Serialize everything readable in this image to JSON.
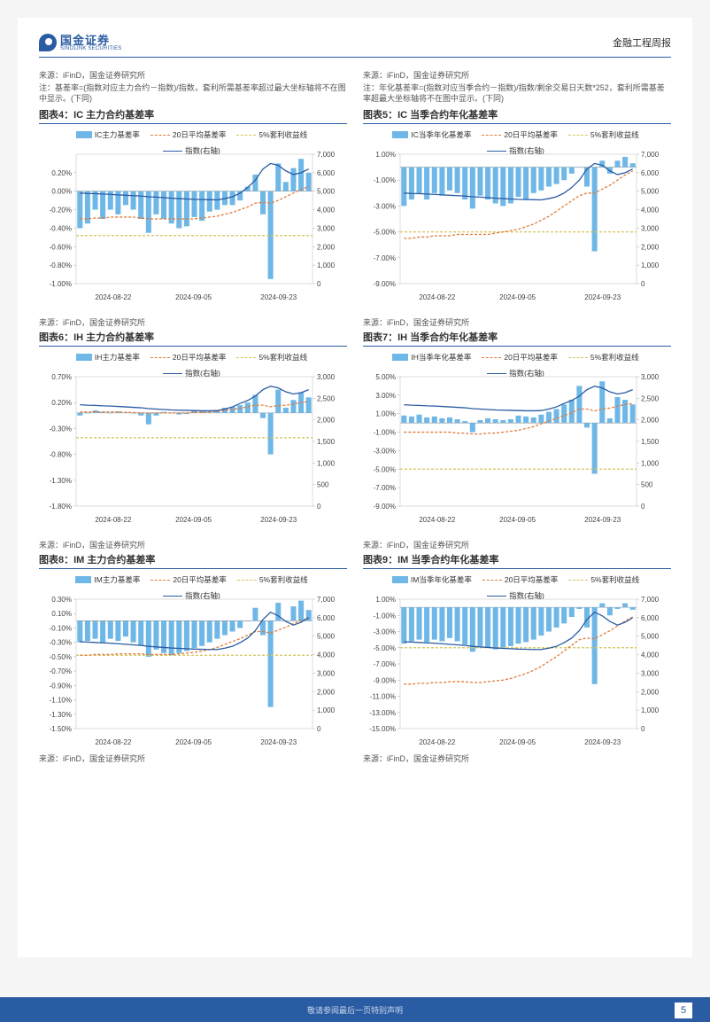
{
  "header": {
    "logo_cn": "国金证券",
    "logo_en": "SINOLINK SECURITIES",
    "report_type": "金融工程周报"
  },
  "footer": {
    "disclaimer": "敬请参阅最后一页特别声明",
    "page": "5"
  },
  "common": {
    "source_label": "来源：iFinD，国金证券研究所",
    "x_dates": [
      "2024-08-22",
      "2024-09-05",
      "2024-09-23"
    ],
    "colors": {
      "bar": "#6fb7e6",
      "ma20": "#e07b3a",
      "arb5": "#d4c45a",
      "index": "#2a5ca3",
      "grid": "#cccccc",
      "axis": "#888888",
      "bg": "#ffffff"
    }
  },
  "notes": {
    "left_top": "注：基差率=(指数对应主力合约－指数)/指数，套利所需基差率超过最大坐标轴将不在图中显示。(下同)",
    "right_top": "注：年化基差率=(指数对应当季合约－指数)/指数/剩余交易日天数*252，套利所需基差率超最大坐标轴将不在图中显示。(下同)"
  },
  "charts": [
    {
      "id": "c4",
      "title": "图表4：IC 主力合约基差率",
      "legend": [
        "IC主力基差率",
        "20日平均基差率",
        "5%套利收益线",
        "指数(右轴)"
      ],
      "yL": {
        "min": -1.0,
        "max": 0.4,
        "ticks": [
          0.2,
          0.0,
          -0.2,
          -0.4,
          -0.6,
          -0.8,
          -1.0
        ],
        "suffix": "%"
      },
      "yR": {
        "min": 0,
        "max": 7000,
        "ticks": [
          7000,
          6000,
          5000,
          4000,
          3000,
          2000,
          1000,
          0
        ]
      },
      "bars": [
        -0.4,
        -0.35,
        -0.2,
        -0.3,
        -0.2,
        -0.25,
        -0.15,
        -0.2,
        -0.3,
        -0.45,
        -0.25,
        -0.3,
        -0.35,
        -0.4,
        -0.38,
        -0.28,
        -0.32,
        -0.22,
        -0.2,
        -0.15,
        -0.15,
        -0.1,
        0.05,
        0.18,
        -0.25,
        -0.95,
        0.3,
        0.1,
        0.25,
        0.35,
        0.2
      ],
      "ma20": [
        -0.3,
        -0.3,
        -0.29,
        -0.29,
        -0.28,
        -0.28,
        -0.28,
        -0.28,
        -0.29,
        -0.3,
        -0.3,
        -0.3,
        -0.3,
        -0.3,
        -0.3,
        -0.3,
        -0.29,
        -0.28,
        -0.27,
        -0.25,
        -0.23,
        -0.2,
        -0.17,
        -0.13,
        -0.12,
        -0.13,
        -0.1,
        -0.06,
        -0.02,
        0.02,
        0.05
      ],
      "arb": -0.48,
      "index": [
        4900,
        4880,
        4870,
        4850,
        4830,
        4800,
        4780,
        4760,
        4740,
        4700,
        4680,
        4650,
        4620,
        4600,
        4580,
        4560,
        4550,
        4540,
        4530,
        4600,
        4700,
        4900,
        5200,
        5600,
        6200,
        6500,
        6400,
        6100,
        5900,
        6000,
        6200
      ]
    },
    {
      "id": "c5",
      "title": "图表5：IC 当季合约年化基差率",
      "legend": [
        "IC当季年化基差率",
        "20日平均基差率",
        "5%套利收益线",
        "指数(右轴)"
      ],
      "yL": {
        "min": -9.0,
        "max": 1.0,
        "ticks": [
          1.0,
          -1.0,
          -3.0,
          -5.0,
          -7.0,
          -9.0
        ],
        "suffix": "%"
      },
      "yR": {
        "min": 0,
        "max": 7000,
        "ticks": [
          7000,
          6000,
          5000,
          4000,
          3000,
          2000,
          1000,
          0
        ]
      },
      "bars": [
        -3.0,
        -2.5,
        -2.0,
        -2.5,
        -2.0,
        -2.2,
        -1.8,
        -2.0,
        -2.5,
        -3.2,
        -2.2,
        -2.5,
        -2.8,
        -3.0,
        -2.8,
        -2.3,
        -2.5,
        -2.0,
        -1.8,
        -1.5,
        -1.3,
        -1.0,
        -0.5,
        0.0,
        -1.5,
        -6.5,
        0.5,
        -0.5,
        0.5,
        0.8,
        0.3
      ],
      "ma20": [
        -5.5,
        -5.5,
        -5.4,
        -5.4,
        -5.3,
        -5.3,
        -5.3,
        -5.2,
        -5.2,
        -5.2,
        -5.2,
        -5.2,
        -5.1,
        -5.0,
        -4.9,
        -4.8,
        -4.6,
        -4.4,
        -4.1,
        -3.8,
        -3.4,
        -3.0,
        -2.6,
        -2.2,
        -2.0,
        -2.0,
        -1.7,
        -1.4,
        -1.0,
        -0.6,
        -0.3
      ],
      "arb": -5.0,
      "index": [
        4900,
        4880,
        4870,
        4850,
        4830,
        4800,
        4780,
        4760,
        4740,
        4700,
        4680,
        4650,
        4620,
        4600,
        4580,
        4560,
        4550,
        4540,
        4530,
        4600,
        4700,
        4900,
        5200,
        5600,
        6200,
        6500,
        6400,
        6100,
        5900,
        6000,
        6200
      ]
    },
    {
      "id": "c6",
      "title": "图表6：IH 主力合约基差率",
      "legend": [
        "IH主力基差率",
        "20日平均基差率",
        "5%套利收益线",
        "指数(右轴)"
      ],
      "yL": {
        "min": -1.8,
        "max": 0.7,
        "ticks": [
          0.7,
          0.2,
          -0.3,
          -0.8,
          -1.3,
          -1.8
        ],
        "suffix": "%"
      },
      "yR": {
        "min": 0,
        "max": 3000,
        "ticks": [
          3000,
          2500,
          2000,
          1500,
          1000,
          500,
          0
        ]
      },
      "bars": [
        -0.05,
        0.0,
        0.05,
        0.02,
        0.0,
        0.03,
        0.01,
        0.0,
        -0.05,
        -0.22,
        -0.05,
        0.02,
        0.0,
        -0.03,
        -0.02,
        0.05,
        0.03,
        0.02,
        0.05,
        0.1,
        0.12,
        0.15,
        0.2,
        0.35,
        -0.1,
        -0.8,
        0.45,
        0.1,
        0.25,
        0.4,
        0.3
      ],
      "ma20": [
        0.02,
        0.02,
        0.02,
        0.02,
        0.02,
        0.02,
        0.01,
        0.01,
        0.0,
        0.0,
        0.0,
        0.0,
        0.0,
        0.0,
        0.0,
        0.01,
        0.01,
        0.02,
        0.03,
        0.05,
        0.07,
        0.09,
        0.12,
        0.15,
        0.15,
        0.12,
        0.14,
        0.15,
        0.17,
        0.2,
        0.22
      ],
      "arb": -0.48,
      "index": [
        2350,
        2340,
        2335,
        2325,
        2320,
        2310,
        2300,
        2290,
        2280,
        2260,
        2250,
        2240,
        2230,
        2225,
        2220,
        2215,
        2210,
        2210,
        2215,
        2250,
        2300,
        2380,
        2450,
        2550,
        2700,
        2780,
        2740,
        2650,
        2600,
        2630,
        2700
      ]
    },
    {
      "id": "c7",
      "title": "图表7：IH 当季合约年化基差率",
      "legend": [
        "IH当季年化基差率",
        "20日平均基差率",
        "5%套利收益线",
        "指数(右轴)"
      ],
      "yL": {
        "min": -9.0,
        "max": 5.0,
        "ticks": [
          5.0,
          3.0,
          1.0,
          -1.0,
          -3.0,
          -5.0,
          -7.0,
          -9.0
        ],
        "suffix": "%"
      },
      "yR": {
        "min": 0,
        "max": 3000,
        "ticks": [
          3000,
          2500,
          2000,
          1500,
          1000,
          500,
          0
        ]
      },
      "bars": [
        0.8,
        0.7,
        0.9,
        0.6,
        0.7,
        0.5,
        0.6,
        0.4,
        0.2,
        -1.0,
        0.3,
        0.5,
        0.4,
        0.3,
        0.4,
        0.8,
        0.7,
        0.6,
        0.9,
        1.2,
        1.5,
        2.0,
        2.5,
        4.0,
        -0.5,
        -5.5,
        4.5,
        0.5,
        2.8,
        2.5,
        2.0
      ],
      "ma20": [
        -1.0,
        -1.0,
        -1.0,
        -1.0,
        -1.0,
        -1.0,
        -1.0,
        -1.1,
        -1.1,
        -1.2,
        -1.2,
        -1.1,
        -1.1,
        -1.0,
        -0.9,
        -0.8,
        -0.6,
        -0.4,
        -0.1,
        0.2,
        0.5,
        0.8,
        1.1,
        1.5,
        1.5,
        1.3,
        1.5,
        1.6,
        1.8,
        2.0,
        2.1
      ],
      "arb": -5.0,
      "index": [
        2350,
        2340,
        2335,
        2325,
        2320,
        2310,
        2300,
        2290,
        2280,
        2260,
        2250,
        2240,
        2230,
        2225,
        2220,
        2215,
        2210,
        2210,
        2215,
        2250,
        2300,
        2380,
        2450,
        2550,
        2700,
        2780,
        2740,
        2650,
        2600,
        2630,
        2700
      ]
    },
    {
      "id": "c8",
      "title": "图表8：IM 主力合约基差率",
      "legend": [
        "IM主力基差率",
        "20日平均基差率",
        "5%套利收益线",
        "指数(右轴)"
      ],
      "yL": {
        "min": -1.5,
        "max": 0.3,
        "ticks": [
          0.3,
          0.1,
          -0.1,
          -0.3,
          -0.5,
          -0.7,
          -0.9,
          -1.1,
          -1.3,
          -1.5
        ],
        "suffix": "%"
      },
      "yR": {
        "min": 0,
        "max": 7000,
        "ticks": [
          7000,
          6000,
          5000,
          4000,
          3000,
          2000,
          1000,
          0
        ]
      },
      "bars": [
        -0.3,
        -0.28,
        -0.25,
        -0.3,
        -0.25,
        -0.28,
        -0.22,
        -0.3,
        -0.35,
        -0.5,
        -0.4,
        -0.45,
        -0.48,
        -0.45,
        -0.42,
        -0.38,
        -0.35,
        -0.3,
        -0.25,
        -0.2,
        -0.15,
        -0.1,
        0.0,
        0.18,
        -0.2,
        -1.2,
        0.25,
        0.0,
        0.2,
        0.28,
        0.15
      ],
      "ma20": [
        -0.48,
        -0.48,
        -0.47,
        -0.47,
        -0.47,
        -0.46,
        -0.46,
        -0.46,
        -0.46,
        -0.47,
        -0.47,
        -0.47,
        -0.47,
        -0.46,
        -0.45,
        -0.44,
        -0.42,
        -0.4,
        -0.37,
        -0.33,
        -0.29,
        -0.25,
        -0.2,
        -0.15,
        -0.15,
        -0.17,
        -0.13,
        -0.09,
        -0.04,
        0.0,
        0.04
      ],
      "arb": -0.48,
      "index": [
        4700,
        4680,
        4660,
        4640,
        4620,
        4590,
        4560,
        4530,
        4500,
        4450,
        4420,
        4390,
        4360,
        4340,
        4320,
        4300,
        4290,
        4280,
        4280,
        4350,
        4450,
        4650,
        4900,
        5300,
        5900,
        6300,
        6100,
        5800,
        5600,
        5750,
        6000
      ]
    },
    {
      "id": "c9",
      "title": "图表9：IM 当季合约年化基差率",
      "legend": [
        "IM当季年化基差率",
        "20日平均基差率",
        "5%套利收益线",
        "指数(右轴)"
      ],
      "yL": {
        "min": -15.0,
        "max": 1.0,
        "ticks": [
          1.0,
          -1.0,
          -3.0,
          -5.0,
          -7.0,
          -9.0,
          -11.0,
          -13.0,
          -15.0
        ],
        "suffix": "%"
      },
      "yR": {
        "min": 0,
        "max": 7000,
        "ticks": [
          7000,
          6000,
          5000,
          4000,
          3000,
          2000,
          1000,
          0
        ]
      },
      "bars": [
        -4.5,
        -4.2,
        -4.0,
        -4.3,
        -4.0,
        -4.2,
        -3.8,
        -4.2,
        -4.6,
        -5.5,
        -4.8,
        -5.0,
        -5.2,
        -5.0,
        -4.8,
        -4.5,
        -4.3,
        -4.0,
        -3.5,
        -3.0,
        -2.5,
        -2.0,
        -1.2,
        -0.2,
        -2.5,
        -9.5,
        0.5,
        -1.0,
        -0.2,
        0.5,
        -0.3
      ],
      "ma20": [
        -9.5,
        -9.5,
        -9.4,
        -9.4,
        -9.3,
        -9.3,
        -9.2,
        -9.2,
        -9.2,
        -9.3,
        -9.3,
        -9.2,
        -9.1,
        -9.0,
        -8.8,
        -8.5,
        -8.2,
        -7.8,
        -7.3,
        -6.7,
        -6.1,
        -5.4,
        -4.7,
        -4.0,
        -3.8,
        -3.9,
        -3.4,
        -2.9,
        -2.3,
        -1.7,
        -1.2
      ],
      "arb": -5.0,
      "index": [
        4700,
        4680,
        4660,
        4640,
        4620,
        4590,
        4560,
        4530,
        4500,
        4450,
        4420,
        4390,
        4360,
        4340,
        4320,
        4300,
        4290,
        4280,
        4280,
        4350,
        4450,
        4650,
        4900,
        5300,
        5900,
        6300,
        6100,
        5800,
        5600,
        5750,
        6000
      ]
    }
  ]
}
